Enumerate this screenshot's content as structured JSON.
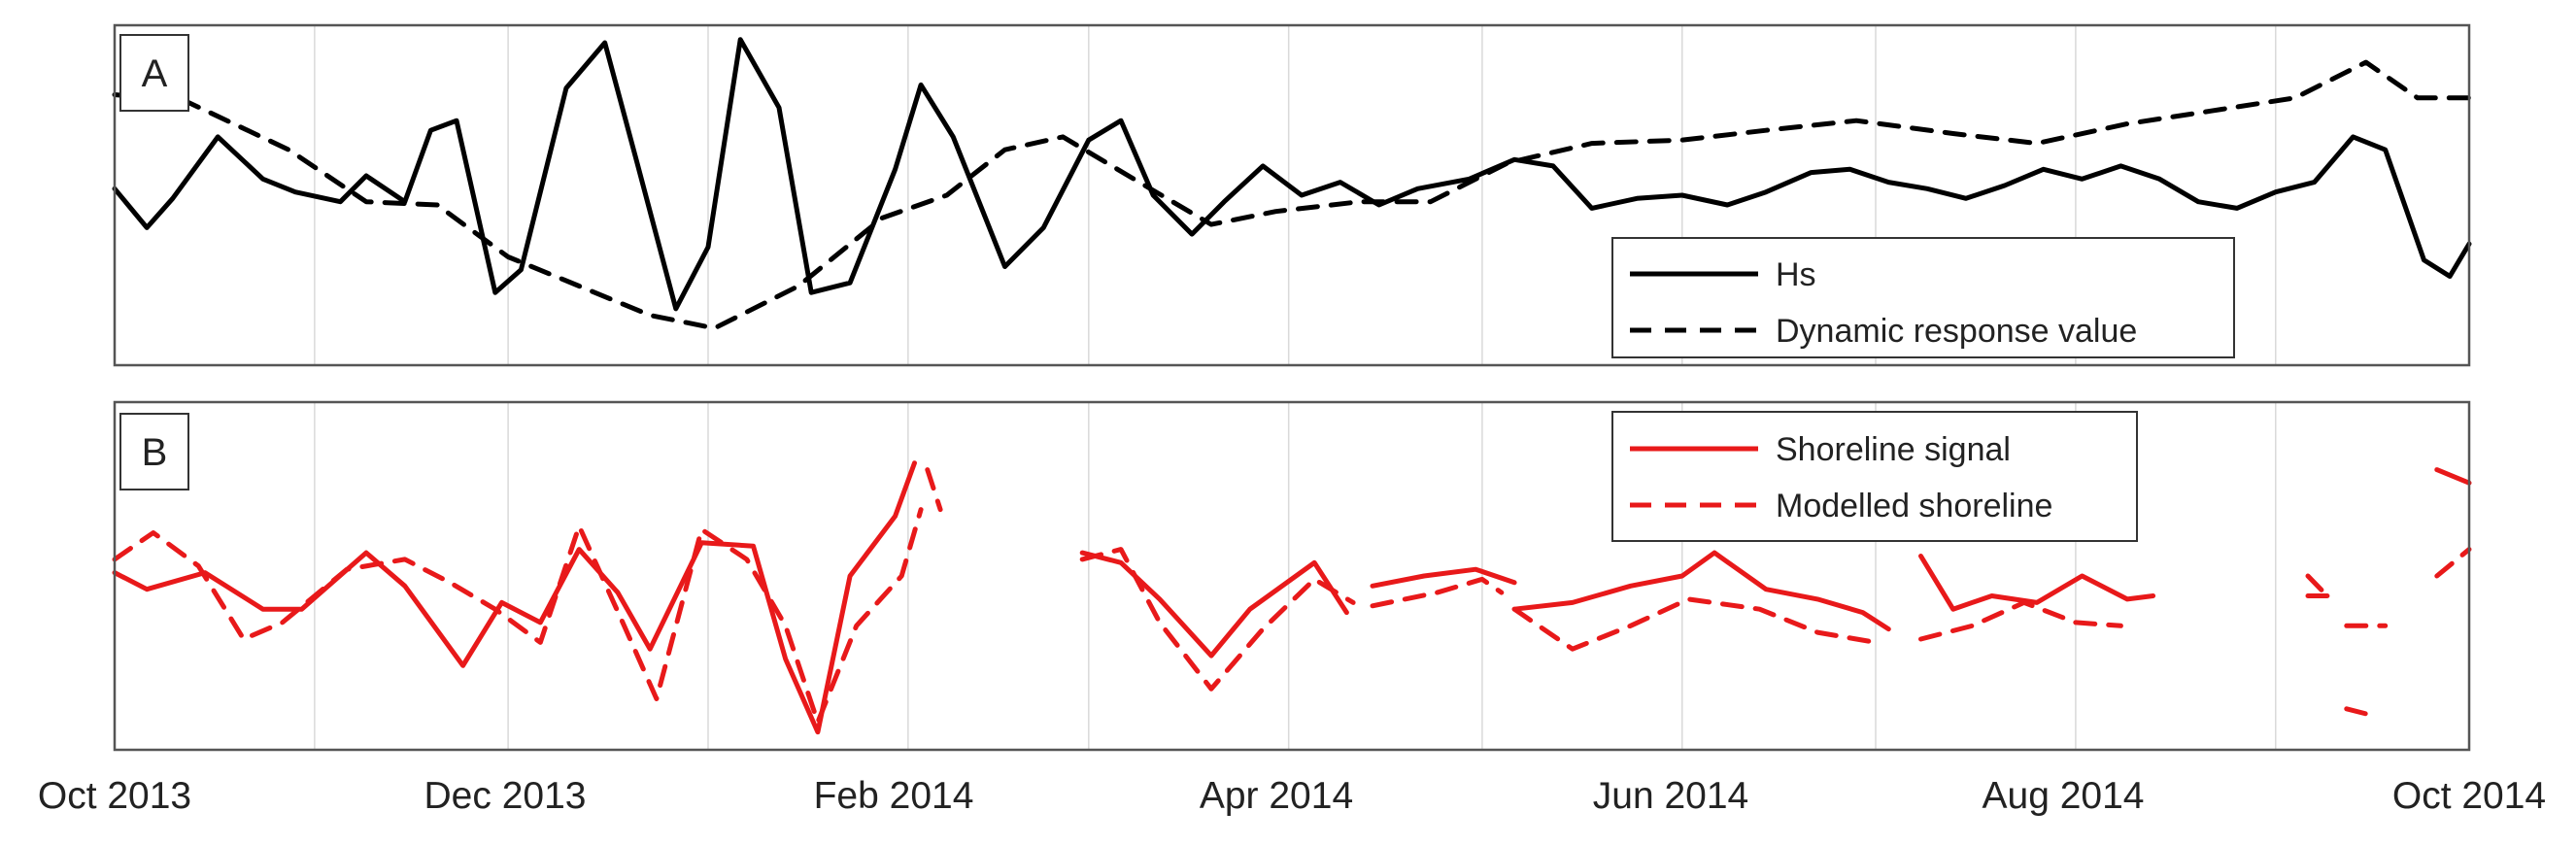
{
  "colors": {
    "panel_a": "#000000",
    "panel_b": "#e8191a",
    "grid": "#d9d9d9",
    "frame": "#555555"
  },
  "x_ticks": [
    "Oct 2013",
    "Dec 2013",
    "Feb 2014",
    "Apr 2014",
    "Jun 2014",
    "Aug 2014",
    "Oct 2014"
  ],
  "chart_data": [
    {
      "panel_label": "A",
      "type": "line",
      "grid": "vertical lines at month boundaries",
      "legend_placement": "lower-right",
      "xlim": [
        "2013-10-01",
        "2014-10-01"
      ],
      "ylim": [
        0,
        100
      ],
      "yticks_shown": false,
      "series": [
        {
          "name": "Hs",
          "style": "solid",
          "x": [
            "2013-10-01",
            "2013-10-06",
            "2013-10-10",
            "2013-10-17",
            "2013-10-24",
            "2013-10-29",
            "2013-11-05",
            "2013-11-09",
            "2013-11-15",
            "2013-11-19",
            "2013-11-23",
            "2013-11-29",
            "2013-12-03",
            "2013-12-10",
            "2013-12-16",
            "2013-12-21",
            "2013-12-27",
            "2014-01-01",
            "2014-01-06",
            "2014-01-12",
            "2014-01-17",
            "2014-01-23",
            "2014-01-30",
            "2014-02-03",
            "2014-02-08",
            "2014-02-16",
            "2014-02-22",
            "2014-03-01",
            "2014-03-06",
            "2014-03-11",
            "2014-03-17",
            "2014-03-22",
            "2014-03-28",
            "2014-04-03",
            "2014-04-09",
            "2014-04-15",
            "2014-04-21",
            "2014-04-29",
            "2014-05-06",
            "2014-05-12",
            "2014-05-18",
            "2014-05-25",
            "2014-06-01",
            "2014-06-08",
            "2014-06-14",
            "2014-06-21",
            "2014-06-27",
            "2014-07-03",
            "2014-07-09",
            "2014-07-15",
            "2014-07-21",
            "2014-07-27",
            "2014-08-02",
            "2014-08-08",
            "2014-08-14",
            "2014-08-20",
            "2014-08-26",
            "2014-09-01",
            "2014-09-07",
            "2014-09-13",
            "2014-09-18",
            "2014-09-24",
            "2014-09-28",
            "2014-10-01"
          ],
          "values": [
            52,
            40,
            49,
            68,
            55,
            51,
            48,
            56,
            48,
            70,
            73,
            20,
            27,
            83,
            97,
            60,
            15,
            34,
            98,
            77,
            20,
            23,
            58,
            84,
            68,
            28,
            40,
            67,
            73,
            50,
            38,
            48,
            59,
            50,
            54,
            47,
            52,
            55,
            61,
            59,
            46,
            49,
            50,
            47,
            51,
            57,
            58,
            54,
            52,
            49,
            53,
            58,
            55,
            59,
            55,
            48,
            46,
            51,
            54,
            68,
            64,
            30,
            25,
            35
          ]
        },
        {
          "name": "Dynamic response value",
          "style": "dashed",
          "x": [
            "2013-10-01",
            "2013-10-12",
            "2013-10-28",
            "2013-11-09",
            "2013-11-20",
            "2013-12-01",
            "2013-12-12",
            "2013-12-23",
            "2014-01-02",
            "2014-01-15",
            "2014-01-28",
            "2014-02-07",
            "2014-02-16",
            "2014-02-25",
            "2014-03-08",
            "2014-03-20",
            "2014-03-30",
            "2014-04-12",
            "2014-04-23",
            "2014-05-05",
            "2014-05-18",
            "2014-06-01",
            "2014-06-14",
            "2014-06-28",
            "2014-07-13",
            "2014-07-26",
            "2014-08-09",
            "2014-08-22",
            "2014-09-04",
            "2014-09-15",
            "2014-09-23",
            "2014-10-01"
          ],
          "values": [
            81,
            79,
            64,
            48,
            47,
            31,
            22,
            13,
            9,
            22,
            43,
            50,
            64,
            68,
            55,
            41,
            45,
            48,
            48,
            60,
            66,
            67,
            70,
            73,
            69,
            66,
            72,
            76,
            80,
            91,
            80,
            80
          ]
        }
      ]
    },
    {
      "panel_label": "B",
      "type": "line",
      "grid": "vertical lines at month boundaries",
      "legend_placement": "top-right",
      "xlim": [
        "2013-10-01",
        "2014-10-01"
      ],
      "ylim": [
        0,
        100
      ],
      "yticks_shown": false,
      "series": [
        {
          "name": "Shoreline signal",
          "style": "solid",
          "segments": [
            {
              "x": [
                "2013-10-01",
                "2013-10-06",
                "2013-10-15",
                "2013-10-24",
                "2013-10-30",
                "2013-11-09",
                "2013-11-15",
                "2013-11-24",
                "2013-11-30",
                "2013-12-06",
                "2013-12-12",
                "2013-12-18",
                "2013-12-23",
                "2013-12-31",
                "2014-01-08",
                "2014-01-13",
                "2014-01-18",
                "2014-01-23",
                "2014-01-30",
                "2014-02-02"
              ],
              "values": [
                51,
                46,
                51,
                40,
                40,
                57,
                47,
                23,
                42,
                36,
                58,
                45,
                28,
                60,
                59,
                25,
                3,
                50,
                68,
                84
              ]
            },
            {
              "x": [
                "2014-02-28",
                "2014-03-06",
                "2014-03-12",
                "2014-03-20",
                "2014-03-26",
                "2014-04-05",
                "2014-04-10"
              ],
              "values": [
                57,
                54,
                43,
                26,
                40,
                54,
                39
              ]
            },
            {
              "x": [
                "2014-04-14",
                "2014-04-22",
                "2014-04-30",
                "2014-05-06"
              ],
              "values": [
                47,
                50,
                52,
                48
              ]
            },
            {
              "x": [
                "2014-05-06",
                "2014-05-15",
                "2014-05-24",
                "2014-06-01",
                "2014-06-06",
                "2014-06-14",
                "2014-06-22",
                "2014-06-29",
                "2014-07-03"
              ],
              "values": [
                40,
                42,
                47,
                50,
                57,
                46,
                43,
                39,
                34
              ]
            },
            {
              "x": [
                "2014-07-08",
                "2014-07-13",
                "2014-07-19",
                "2014-07-26",
                "2014-08-02",
                "2014-08-09",
                "2014-08-13"
              ],
              "values": [
                56,
                40,
                44,
                42,
                50,
                43,
                44
              ]
            },
            {
              "x": [
                "2014-09-06",
                "2014-09-09"
              ],
              "values": [
                44,
                44
              ]
            },
            {
              "x": [
                "2014-09-26",
                "2014-10-01"
              ],
              "values": [
                82,
                78
              ]
            }
          ]
        },
        {
          "name": "Modelled shoreline",
          "style": "dashed",
          "segments": [
            {
              "x": [
                "2013-10-01",
                "2013-10-07",
                "2013-10-14",
                "2013-10-21",
                "2013-10-27",
                "2013-11-06",
                "2013-11-15",
                "2013-11-22",
                "2013-11-29",
                "2013-12-06",
                "2013-12-12",
                "2013-12-19",
                "2013-12-24",
                "2013-12-31",
                "2014-01-07",
                "2014-01-13",
                "2014-01-18",
                "2014-01-24",
                "2014-01-31",
                "2014-02-03"
              ],
              "values": [
                55,
                63,
                53,
                31,
                36,
                52,
                55,
                48,
                40,
                30,
                65,
                35,
                13,
                64,
                55,
                35,
                6,
                35,
                50,
                70
              ]
            },
            {
              "x": [
                "2014-02-04",
                "2014-02-06"
              ],
              "values": [
                82,
                70
              ]
            },
            {
              "x": [
                "2014-02-28",
                "2014-03-06",
                "2014-03-12",
                "2014-03-20",
                "2014-03-28",
                "2014-04-05",
                "2014-04-11"
              ],
              "values": [
                55,
                58,
                36,
                16,
                34,
                49,
                42
              ]
            },
            {
              "x": [
                "2014-04-14",
                "2014-04-24",
                "2014-05-01",
                "2014-05-04"
              ],
              "values": [
                41,
                45,
                49,
                45
              ]
            },
            {
              "x": [
                "2014-05-06",
                "2014-05-15",
                "2014-05-24",
                "2014-06-02",
                "2014-06-13",
                "2014-06-22",
                "2014-07-01"
              ],
              "values": [
                40,
                28,
                35,
                43,
                40,
                33,
                30
              ]
            },
            {
              "x": [
                "2014-07-08",
                "2014-07-16",
                "2014-07-24",
                "2014-08-01",
                "2014-08-08"
              ],
              "values": [
                31,
                35,
                42,
                36,
                35
              ]
            },
            {
              "x": [
                "2014-09-06",
                "2014-09-09"
              ],
              "values": [
                50,
                44
              ]
            },
            {
              "x": [
                "2014-09-12",
                "2014-09-18"
              ],
              "values": [
                35,
                35
              ]
            },
            {
              "x": [
                "2014-09-12",
                "2014-09-16"
              ],
              "values": [
                10,
                8
              ]
            },
            {
              "x": [
                "2014-09-26",
                "2014-10-01"
              ],
              "values": [
                50,
                58
              ]
            }
          ]
        }
      ]
    }
  ]
}
